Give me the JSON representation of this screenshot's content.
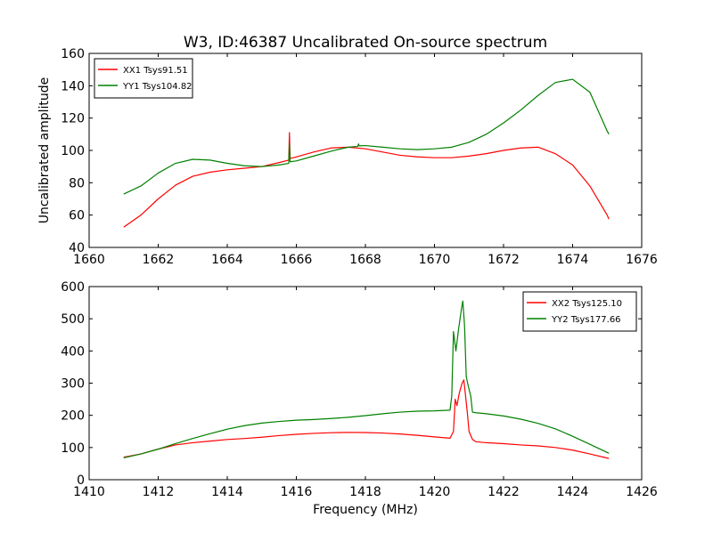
{
  "figure": {
    "title": "W3, ID:46387 Uncalibrated On-source spectrum",
    "xlabel": "Frequency (MHz)"
  },
  "chart_data": [
    {
      "type": "line",
      "title": "W3, ID:46387 Uncalibrated On-source spectrum",
      "xlabel": "",
      "ylabel": "Uncalibrated amplitude",
      "xlim": [
        1660,
        1676
      ],
      "ylim": [
        40,
        160
      ],
      "xticks": [
        1660,
        1662,
        1664,
        1666,
        1668,
        1670,
        1672,
        1674,
        1676
      ],
      "yticks": [
        40,
        60,
        80,
        100,
        120,
        140,
        160
      ],
      "grid": false,
      "legend_position": "top-left",
      "series": [
        {
          "name": "XX1 Tsys91.51",
          "color": "#ff0000",
          "points": [
            [
              1661.0,
              52.5
            ],
            [
              1661.5,
              60
            ],
            [
              1662.0,
              70
            ],
            [
              1662.5,
              78.5
            ],
            [
              1663.0,
              84
            ],
            [
              1663.5,
              86.5
            ],
            [
              1664.0,
              88
            ],
            [
              1664.5,
              89
            ],
            [
              1665.0,
              90
            ],
            [
              1665.5,
              92.5
            ],
            [
              1665.78,
              94
            ],
            [
              1665.8,
              111
            ],
            [
              1665.82,
              95
            ],
            [
              1666.0,
              96
            ],
            [
              1666.5,
              99
            ],
            [
              1667.0,
              101.5
            ],
            [
              1667.5,
              102
            ],
            [
              1668.0,
              101
            ],
            [
              1668.5,
              99
            ],
            [
              1669.0,
              97
            ],
            [
              1669.5,
              96
            ],
            [
              1670.0,
              95.5
            ],
            [
              1670.5,
              95.5
            ],
            [
              1671.0,
              96.5
            ],
            [
              1671.5,
              98
            ],
            [
              1672.0,
              100
            ],
            [
              1672.5,
              101.5
            ],
            [
              1673.0,
              102
            ],
            [
              1673.5,
              98
            ],
            [
              1674.0,
              91
            ],
            [
              1674.5,
              78
            ],
            [
              1675.0,
              60
            ],
            [
              1675.05,
              57.5
            ]
          ]
        },
        {
          "name": "YY1 Tsys104.82",
          "color": "#008000",
          "points": [
            [
              1661.0,
              73
            ],
            [
              1661.5,
              78
            ],
            [
              1662.0,
              86
            ],
            [
              1662.5,
              92
            ],
            [
              1663.0,
              94.5
            ],
            [
              1663.5,
              94
            ],
            [
              1664.0,
              92
            ],
            [
              1664.5,
              90.5
            ],
            [
              1665.0,
              90
            ],
            [
              1665.5,
              91
            ],
            [
              1665.78,
              92
            ],
            [
              1665.8,
              104
            ],
            [
              1665.82,
              93
            ],
            [
              1666.0,
              93.5
            ],
            [
              1666.5,
              96.5
            ],
            [
              1667.0,
              99.5
            ],
            [
              1667.5,
              102
            ],
            [
              1667.78,
              102.5
            ],
            [
              1667.8,
              104
            ],
            [
              1667.82,
              102.8
            ],
            [
              1668.0,
              103
            ],
            [
              1668.5,
              102
            ],
            [
              1669.0,
              101
            ],
            [
              1669.5,
              100.5
            ],
            [
              1670.0,
              101
            ],
            [
              1670.5,
              102
            ],
            [
              1671.0,
              105
            ],
            [
              1671.5,
              110
            ],
            [
              1672.0,
              117
            ],
            [
              1672.5,
              125
            ],
            [
              1673.0,
              134
            ],
            [
              1673.5,
              142
            ],
            [
              1674.0,
              144
            ],
            [
              1674.5,
              136
            ],
            [
              1675.0,
              112
            ],
            [
              1675.05,
              110
            ]
          ]
        }
      ]
    },
    {
      "type": "line",
      "title": "",
      "xlabel": "Frequency (MHz)",
      "ylabel": "",
      "xlim": [
        1410,
        1426
      ],
      "ylim": [
        0,
        600
      ],
      "xticks": [
        1410,
        1412,
        1414,
        1416,
        1418,
        1420,
        1422,
        1424,
        1426
      ],
      "yticks": [
        0,
        100,
        200,
        300,
        400,
        500,
        600
      ],
      "grid": false,
      "legend_position": "top-right",
      "series": [
        {
          "name": "XX2 Tsys125.10",
          "color": "#ff0000",
          "points": [
            [
              1411.0,
              70
            ],
            [
              1411.5,
              80
            ],
            [
              1412.0,
              95
            ],
            [
              1412.5,
              108
            ],
            [
              1413.0,
              115
            ],
            [
              1413.5,
              120
            ],
            [
              1414.0,
              125
            ],
            [
              1414.5,
              128
            ],
            [
              1415.0,
              132
            ],
            [
              1415.5,
              137
            ],
            [
              1416.0,
              141
            ],
            [
              1416.5,
              144
            ],
            [
              1417.0,
              146
            ],
            [
              1417.5,
              147
            ],
            [
              1418.0,
              146.5
            ],
            [
              1418.5,
              145
            ],
            [
              1419.0,
              142
            ],
            [
              1419.5,
              138
            ],
            [
              1420.0,
              133
            ],
            [
              1420.45,
              129
            ],
            [
              1420.55,
              150
            ],
            [
              1420.6,
              250
            ],
            [
              1420.65,
              230
            ],
            [
              1420.72,
              270
            ],
            [
              1420.8,
              300
            ],
            [
              1420.85,
              310
            ],
            [
              1420.9,
              260
            ],
            [
              1420.95,
              210
            ],
            [
              1421.0,
              150
            ],
            [
              1421.1,
              125
            ],
            [
              1421.2,
              118
            ],
            [
              1421.5,
              115
            ],
            [
              1422.0,
              112
            ],
            [
              1422.5,
              108
            ],
            [
              1423.0,
              105
            ],
            [
              1423.5,
              100
            ],
            [
              1424.0,
              92
            ],
            [
              1424.5,
              80
            ],
            [
              1425.05,
              66
            ]
          ]
        },
        {
          "name": "YY2 Tsys177.66",
          "color": "#008000",
          "points": [
            [
              1411.0,
              68
            ],
            [
              1411.5,
              80
            ],
            [
              1412.0,
              95
            ],
            [
              1412.5,
              112
            ],
            [
              1413.0,
              128
            ],
            [
              1413.5,
              143
            ],
            [
              1414.0,
              157
            ],
            [
              1414.5,
              168
            ],
            [
              1415.0,
              176
            ],
            [
              1415.5,
              181
            ],
            [
              1416.0,
              185
            ],
            [
              1416.5,
              187
            ],
            [
              1417.0,
              190
            ],
            [
              1417.5,
              194
            ],
            [
              1418.0,
              199
            ],
            [
              1418.5,
              205
            ],
            [
              1419.0,
              210
            ],
            [
              1419.5,
              213
            ],
            [
              1420.0,
              214
            ],
            [
              1420.45,
              216
            ],
            [
              1420.5,
              260
            ],
            [
              1420.55,
              460
            ],
            [
              1420.62,
              400
            ],
            [
              1420.7,
              470
            ],
            [
              1420.78,
              530
            ],
            [
              1420.82,
              555
            ],
            [
              1420.87,
              480
            ],
            [
              1420.92,
              320
            ],
            [
              1420.98,
              290
            ],
            [
              1421.05,
              260
            ],
            [
              1421.1,
              210
            ],
            [
              1421.2,
              208
            ],
            [
              1421.5,
              205
            ],
            [
              1422.0,
              198
            ],
            [
              1422.5,
              188
            ],
            [
              1423.0,
              175
            ],
            [
              1423.5,
              158
            ],
            [
              1424.0,
              135
            ],
            [
              1424.5,
              110
            ],
            [
              1425.05,
              82
            ]
          ]
        }
      ]
    }
  ]
}
